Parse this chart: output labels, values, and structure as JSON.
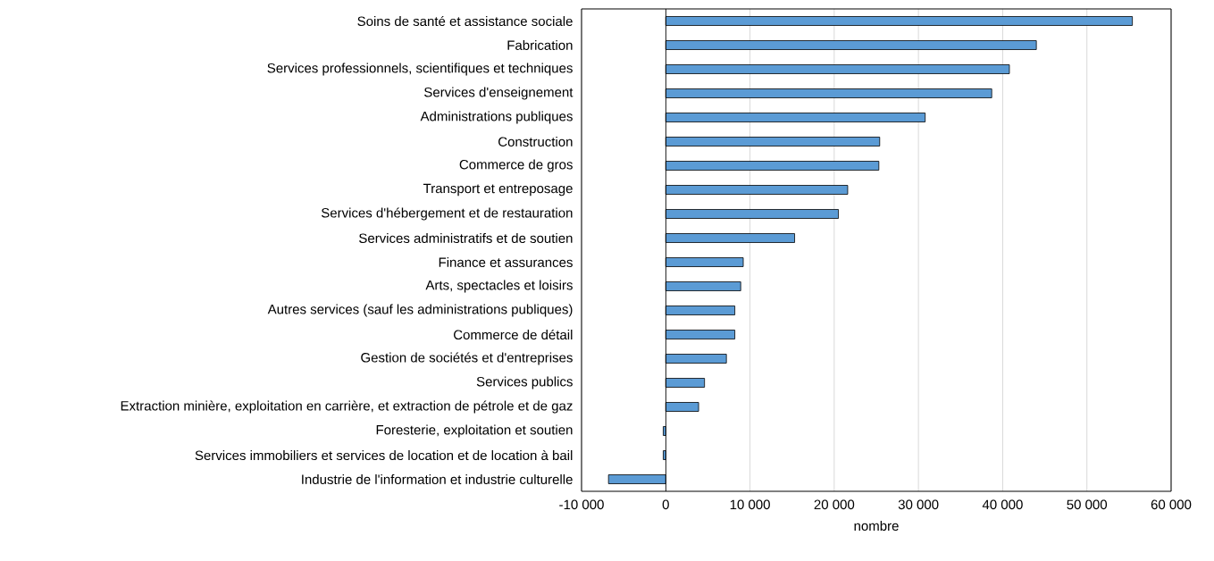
{
  "chart_data": {
    "type": "bar",
    "orientation": "horizontal",
    "xlabel": "nombre",
    "categories": [
      "Soins de santé et assistance sociale",
      "Fabrication",
      "Services professionnels, scientifiques et techniques",
      "Services d'enseignement",
      "Administrations publiques",
      "Construction",
      "Commerce de gros",
      "Transport et entreposage",
      "Services d'hébergement et de restauration",
      "Services administratifs et de soutien",
      "Finance et assurances",
      "Arts, spectacles et loisirs",
      "Autres services (sauf les administrations publiques)",
      "Commerce de détail",
      "Gestion de sociétés et d'entreprises",
      "Services publics",
      "Extraction minière, exploitation en carrière, et extraction de pétrole et de gaz",
      "Foresterie, exploitation et soutien",
      "Services immobiliers et services de location et de location à bail",
      "Industrie de l'information et industrie culturelle"
    ],
    "values": [
      55400,
      44000,
      40800,
      38700,
      30800,
      25400,
      25300,
      21600,
      20500,
      15300,
      9200,
      8900,
      8200,
      8200,
      7200,
      4600,
      3900,
      -300,
      -300,
      -6800
    ],
    "color": "#5b9bd5",
    "xlim": [
      -10000,
      60000
    ],
    "xticks": [
      {
        "value": -10000,
        "label": "-10 000"
      },
      0,
      {
        "value": 10000,
        "label": "10 000"
      },
      {
        "value": 20000,
        "label": "20 000"
      },
      {
        "value": 30000,
        "label": "30 000"
      },
      {
        "value": 40000,
        "label": "40 000"
      },
      {
        "value": 50000,
        "label": "50 000"
      },
      {
        "value": 60000,
        "label": "60 000"
      }
    ],
    "grid": "x"
  }
}
